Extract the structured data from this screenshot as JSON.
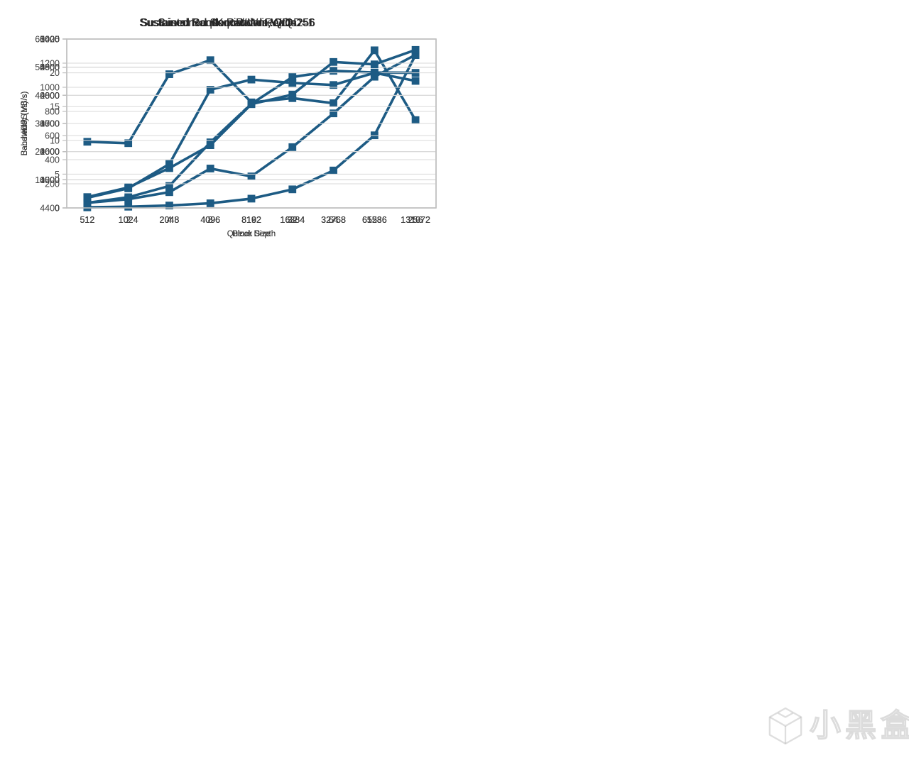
{
  "style": {
    "line_color": "#1D5B84",
    "grid_color": "#D9D9D9",
    "border_color": "#BFBFBF",
    "text_color": "#404040",
    "title_color": "#262626",
    "background": "#FFFFFF"
  },
  "watermark": {
    "text": "小黑盒",
    "icon": "cube-logo-icon"
  },
  "chart_data": [
    {
      "type": "line",
      "title": "Sustained 4K Random Write",
      "xlabel": "Queue Depth",
      "ylabel": "IOPS",
      "categories": [
        "1",
        "2",
        "4",
        "8",
        "16",
        "32",
        "64",
        "128",
        "256"
      ],
      "values": [
        4635,
        4630,
        4875,
        4925,
        4775,
        4790,
        4772,
        4960,
        4712
      ],
      "ylim": [
        4400,
        5000
      ],
      "ytick_step": 100,
      "grid": true,
      "legend": "none",
      "marker": "square"
    },
    {
      "type": "line",
      "title": "Sustained 4K Random Write",
      "xlabel": "Queue Depth",
      "ylabel": "Latency (us)",
      "categories": [
        "1",
        "2",
        "4",
        "8",
        "16",
        "32",
        "64",
        "128",
        "256"
      ],
      "values": [
        210,
        430,
        860,
        1650,
        3300,
        6600,
        13300,
        25800,
        54300
      ],
      "ylim": [
        0,
        60000
      ],
      "ytick_step": 10000,
      "grid": true,
      "legend": "none",
      "marker": "square"
    },
    {
      "type": "line",
      "title": "Sustained Random Reads, QD=256",
      "xlabel": "Block Size",
      "ylabel": "Bandwidth (MB/s)",
      "categories": [
        "512",
        "1024",
        "2048",
        "4096",
        "8192",
        "16384",
        "32768",
        "65536",
        "131072"
      ],
      "values": [
        90,
        155,
        280,
        700,
        560,
        1080,
        1680,
        2330,
        2720
      ],
      "ylim": [
        0,
        3000
      ],
      "ytick_step": 500,
      "grid": true,
      "legend": "none",
      "marker": "square"
    },
    {
      "type": "line",
      "title": "Sustained Sequential Reads",
      "xlabel": "Block Size",
      "ylabel": "Bandwidth (MB/s)",
      "categories": [
        "512",
        "1024",
        "2048",
        "4096",
        "8192",
        "16384",
        "32768",
        "65536",
        "131072"
      ],
      "values": [
        180,
        380,
        780,
        2330,
        3700,
        4650,
        4870,
        4810,
        4800
      ],
      "ylim": [
        0,
        6000
      ],
      "ytick_step": 1000,
      "grid": true,
      "legend": "none",
      "marker": "square"
    },
    {
      "type": "line",
      "title": "Sustained Random Writes, QD=256",
      "xlabel": "Block Size",
      "ylabel": "Bandwidth (MB/s)",
      "categories": [
        "512",
        "1024",
        "2048",
        "4096",
        "8192",
        "16384",
        "32768",
        "65536",
        "131072"
      ],
      "values": [
        1.5,
        2.9,
        6.5,
        17.5,
        19.0,
        18.5,
        18.2,
        20.0,
        18.8
      ],
      "ylim": [
        0,
        25
      ],
      "ytick_step": 5,
      "grid": true,
      "legend": "none",
      "marker": "square"
    },
    {
      "type": "line",
      "title": "Sustained Sequential Writes, QD=1",
      "xlabel": "Block Size",
      "ylabel": "Bandwidth (MB/s)",
      "categories": [
        "512",
        "1024",
        "2048",
        "4096",
        "8192",
        "16384",
        "32768",
        "65536",
        "131072"
      ],
      "values": [
        90,
        170,
        330,
        520,
        860,
        940,
        1210,
        1190,
        1310
      ],
      "ylim": [
        0,
        1400
      ],
      "ytick_step": 200,
      "grid": true,
      "legend": "none",
      "marker": "square"
    }
  ]
}
